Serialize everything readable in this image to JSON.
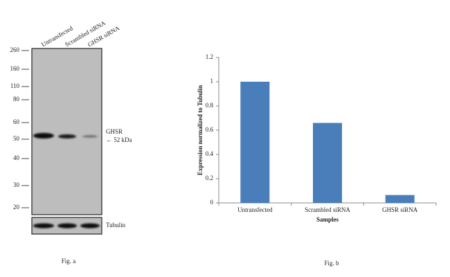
{
  "blot": {
    "lanes": [
      "Untransfected",
      "Scrambled siRNA",
      "GHSR siRNA"
    ],
    "markers": [
      260,
      160,
      110,
      80,
      60,
      50,
      40,
      30,
      20
    ],
    "target": "GHSR",
    "target_size": "← 52 kDa",
    "control": "Tubulin",
    "caption": "Fig. a"
  },
  "chart_data": {
    "type": "bar",
    "categories": [
      "Untransfected",
      "Scrambled siRNA",
      "GHSR siRNA"
    ],
    "values": [
      1.0,
      0.66,
      0.065
    ],
    "color": "#4a7ebb",
    "ylim": [
      0,
      1.2
    ],
    "yticks": [
      0,
      0.2,
      0.4,
      0.6,
      0.8,
      1,
      1.2
    ],
    "y_label": "Expression  normalized to Tubulin",
    "x_label": "Samples",
    "caption": "Fig. b"
  }
}
